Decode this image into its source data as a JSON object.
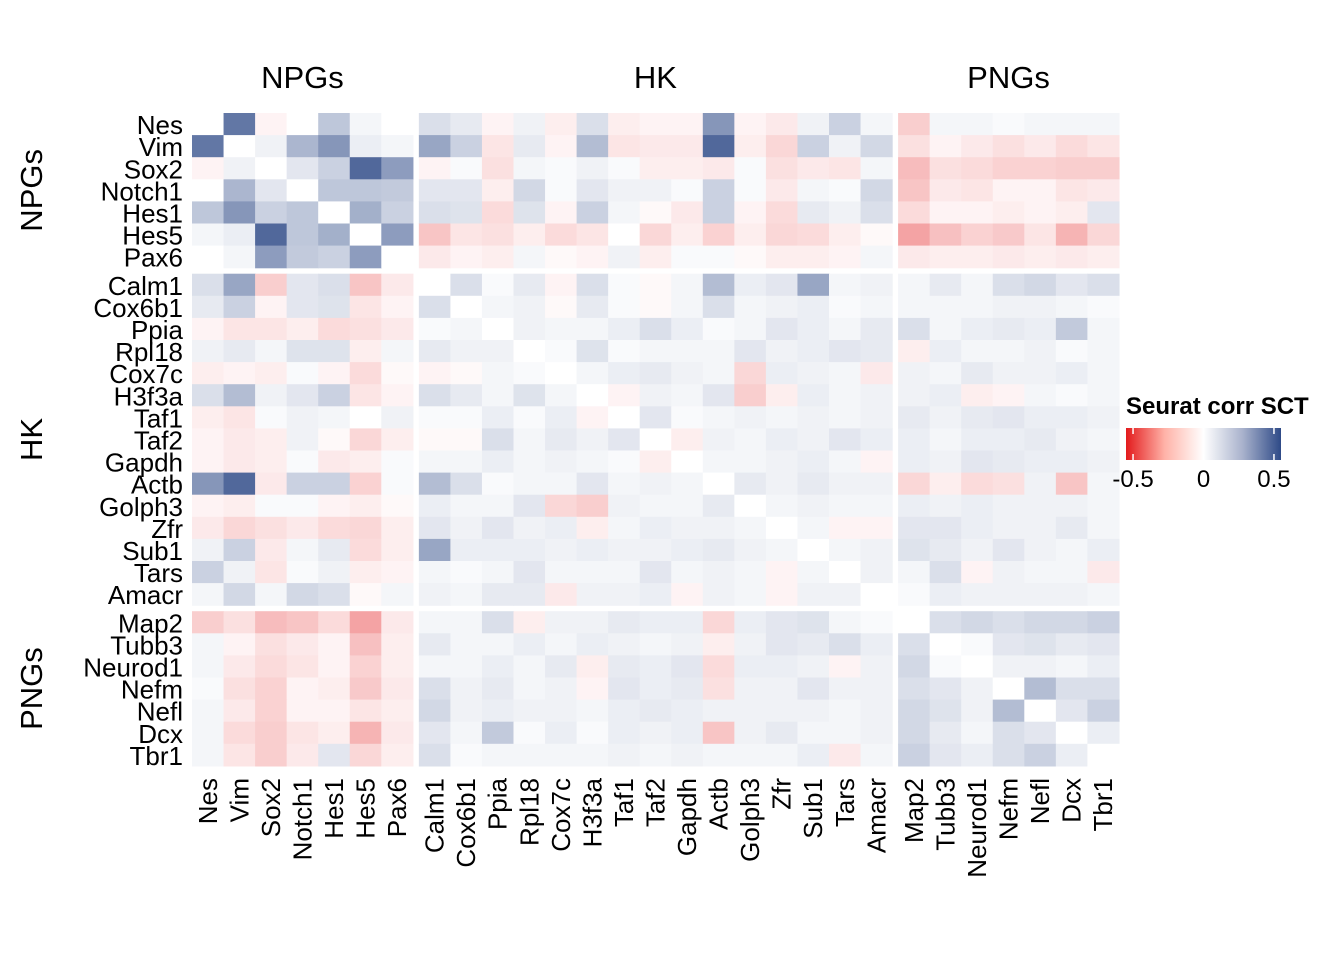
{
  "chart_data": {
    "type": "heatmap",
    "genes": [
      "Nes",
      "Vim",
      "Sox2",
      "Notch1",
      "Hes1",
      "Hes5",
      "Pax6",
      "Calm1",
      "Cox6b1",
      "Ppia",
      "Rpl18",
      "Cox7c",
      "H3f3a",
      "Taf1",
      "Taf2",
      "Gapdh",
      "Actb",
      "Golph3",
      "Zfr",
      "Sub1",
      "Tars",
      "Amacr",
      "Map2",
      "Tubb3",
      "Neurod1",
      "Nefm",
      "Nefl",
      "Dcx",
      "Tbr1"
    ],
    "groups": [
      {
        "name": "NPGs",
        "size": 7
      },
      {
        "name": "HK",
        "size": 15
      },
      {
        "name": "PNGs",
        "size": 7
      }
    ],
    "legend": {
      "title": "Seurat corr SCT",
      "ticks": [
        -0.5,
        0,
        0.5
      ],
      "tick_labels": [
        "-0.5",
        "0",
        "0.5"
      ],
      "range": [
        -0.55,
        0.55
      ],
      "low_color": "#e31a1c",
      "mid_color": "#ffffff",
      "high_color": "#2e4a87"
    },
    "values": [
      [
        0,
        0.4,
        -0.02,
        0,
        0.15,
        0.02,
        0,
        0.08,
        0.05,
        -0.02,
        0.03,
        -0.03,
        0.08,
        -0.03,
        -0.02,
        -0.02,
        0.3,
        -0.02,
        -0.04,
        0.03,
        0.12,
        0.02,
        -0.1,
        0.02,
        0.02,
        0.01,
        0.02,
        0.02,
        0.02
      ],
      [
        0.4,
        0,
        0.03,
        0.2,
        0.3,
        0.04,
        0.02,
        0.25,
        0.12,
        -0.05,
        0.05,
        -0.02,
        0.18,
        -0.05,
        -0.04,
        -0.04,
        0.45,
        -0.03,
        -0.08,
        0.12,
        0.03,
        0.1,
        -0.06,
        -0.02,
        -0.04,
        -0.06,
        -0.04,
        -0.07,
        -0.05
      ],
      [
        -0.02,
        0.03,
        0,
        0.06,
        0.12,
        0.45,
        0.28,
        -0.02,
        0.01,
        -0.06,
        0.02,
        0.01,
        0.03,
        0.01,
        -0.03,
        -0.03,
        -0.04,
        0.01,
        -0.06,
        -0.04,
        -0.05,
        0.02,
        -0.14,
        -0.06,
        -0.07,
        -0.09,
        -0.09,
        -0.1,
        -0.1
      ],
      [
        0,
        0.2,
        0.06,
        0,
        0.15,
        0.15,
        0.14,
        0.06,
        0.06,
        -0.03,
        0.1,
        0.01,
        0.06,
        0.03,
        0.03,
        0.01,
        0.12,
        0.01,
        -0.04,
        0.02,
        0.01,
        0.1,
        -0.12,
        -0.04,
        -0.05,
        -0.02,
        -0.02,
        -0.05,
        -0.04
      ],
      [
        0.15,
        0.3,
        0.12,
        0.15,
        0,
        0.22,
        0.12,
        0.08,
        0.07,
        -0.07,
        0.07,
        -0.02,
        0.12,
        0.02,
        -0.01,
        -0.04,
        0.12,
        -0.02,
        -0.07,
        0.05,
        0.03,
        0.08,
        -0.07,
        -0.02,
        -0.02,
        -0.03,
        -0.02,
        -0.03,
        0.06
      ],
      [
        0.02,
        0.04,
        0.45,
        0.15,
        0.22,
        0,
        0.28,
        -0.12,
        -0.05,
        -0.06,
        -0.03,
        -0.07,
        -0.05,
        0,
        -0.08,
        -0.03,
        -0.09,
        -0.03,
        -0.08,
        -0.07,
        -0.03,
        -0.01,
        -0.2,
        -0.13,
        -0.09,
        -0.11,
        -0.05,
        -0.16,
        -0.08
      ],
      [
        0,
        0.02,
        0.28,
        0.14,
        0.12,
        0.28,
        0,
        -0.04,
        -0.02,
        -0.03,
        0.02,
        -0.01,
        -0.02,
        0.03,
        -0.03,
        0.01,
        0.01,
        -0.01,
        -0.03,
        -0.03,
        -0.02,
        0.02,
        -0.04,
        -0.03,
        -0.03,
        -0.04,
        -0.03,
        -0.04,
        -0.03
      ],
      [
        0.08,
        0.25,
        -0.1,
        0.06,
        0.08,
        -0.12,
        -0.04,
        0,
        0.08,
        0.01,
        0.05,
        -0.02,
        0.08,
        0.01,
        -0.01,
        0.02,
        0.18,
        0.04,
        0.06,
        0.25,
        0.02,
        0.03,
        0.02,
        0.05,
        0.02,
        0.08,
        0.1,
        0.06,
        0.08
      ],
      [
        0.05,
        0.12,
        -0.02,
        0.06,
        0.07,
        -0.05,
        -0.02,
        0.08,
        0,
        0.02,
        0.03,
        -0.01,
        0.05,
        0.01,
        -0.01,
        0.02,
        0.08,
        0.02,
        0.03,
        0.04,
        0.01,
        0.02,
        0.02,
        0.02,
        0.02,
        0.03,
        0.03,
        0.02,
        0.01
      ],
      [
        -0.02,
        -0.05,
        -0.05,
        -0.03,
        -0.07,
        -0.06,
        -0.04,
        0.01,
        0.02,
        0,
        0.03,
        0.02,
        0.02,
        0.04,
        0.08,
        0.04,
        0.01,
        0.02,
        0.06,
        0.04,
        0.02,
        0.05,
        0.08,
        0.02,
        0.04,
        0.05,
        0.04,
        0.14,
        0.02
      ],
      [
        0.03,
        0.05,
        0.02,
        0.07,
        0.07,
        -0.03,
        0.02,
        0.05,
        0.03,
        0.03,
        0,
        0.01,
        0.07,
        0.01,
        0.02,
        0.02,
        0.02,
        0.06,
        0.03,
        0.04,
        0.06,
        0.05,
        -0.03,
        0.04,
        0.02,
        0.02,
        0.03,
        0.01,
        0.02
      ],
      [
        -0.03,
        -0.02,
        -0.03,
        0.01,
        -0.02,
        -0.07,
        -0.01,
        -0.02,
        -0.01,
        0.02,
        0.01,
        0,
        0.02,
        0.04,
        0.05,
        0.03,
        0.02,
        -0.08,
        0.04,
        0.03,
        0.02,
        -0.04,
        0.03,
        0.02,
        0.05,
        0.03,
        0.03,
        0.04,
        0.02
      ],
      [
        0.08,
        0.18,
        0.03,
        0.06,
        0.12,
        -0.05,
        -0.02,
        0.08,
        0.05,
        0.02,
        0.07,
        0.02,
        0,
        -0.02,
        0.03,
        0.02,
        0.06,
        -0.1,
        -0.03,
        0.04,
        0.02,
        0.03,
        0.03,
        0.04,
        -0.03,
        -0.02,
        0.02,
        0.01,
        0.02
      ],
      [
        -0.03,
        -0.05,
        0.01,
        0.03,
        0.02,
        0,
        0.03,
        0.01,
        0.01,
        0.04,
        0.01,
        0.04,
        -0.02,
        0,
        0.06,
        0.01,
        0.02,
        0.03,
        0.02,
        0.03,
        0.02,
        0.03,
        0.05,
        0.03,
        0.05,
        0.06,
        0.04,
        0.04,
        0.03
      ],
      [
        -0.02,
        -0.04,
        -0.03,
        0.03,
        -0.01,
        -0.08,
        -0.03,
        -0.01,
        -0.01,
        0.08,
        0.02,
        0.05,
        0.03,
        0.06,
        0,
        -0.03,
        0.03,
        0.02,
        0.04,
        0.03,
        0.06,
        0.04,
        0.04,
        0.02,
        0.04,
        0.04,
        0.05,
        0.03,
        0.02
      ],
      [
        -0.02,
        -0.04,
        -0.03,
        0.01,
        -0.04,
        -0.03,
        0.01,
        0.02,
        0.02,
        0.04,
        0.02,
        0.03,
        0.02,
        0.01,
        -0.03,
        0,
        0.02,
        0.02,
        0.03,
        0.04,
        0.02,
        -0.02,
        0.04,
        0.03,
        0.06,
        0.05,
        0.04,
        0.04,
        0.03
      ],
      [
        0.3,
        0.45,
        -0.04,
        0.12,
        0.12,
        -0.09,
        0.01,
        0.18,
        0.08,
        0.01,
        0.02,
        0.02,
        0.06,
        0.02,
        0.03,
        0.02,
        0,
        0.05,
        0.03,
        0.05,
        0.03,
        0.03,
        -0.08,
        -0.03,
        -0.07,
        -0.06,
        0.03,
        -0.12,
        0.02
      ],
      [
        -0.02,
        -0.03,
        0.01,
        0.01,
        -0.02,
        -0.03,
        -0.01,
        0.04,
        0.02,
        0.02,
        0.06,
        -0.08,
        -0.1,
        0.03,
        0.02,
        0.02,
        0.05,
        0,
        0.02,
        0.03,
        0.02,
        0.02,
        0.04,
        0.03,
        0.04,
        0.03,
        0.03,
        0.03,
        0.02
      ],
      [
        -0.04,
        -0.08,
        -0.06,
        -0.04,
        -0.07,
        -0.08,
        -0.03,
        0.06,
        0.03,
        0.06,
        0.03,
        0.04,
        -0.03,
        0.02,
        0.04,
        0.03,
        0.03,
        0.02,
        0,
        0.02,
        -0.02,
        -0.02,
        0.06,
        0.06,
        0.04,
        0.03,
        0.03,
        0.05,
        0.02
      ],
      [
        0.03,
        0.12,
        -0.04,
        0.02,
        0.05,
        -0.07,
        -0.03,
        0.25,
        0.04,
        0.04,
        0.04,
        0.03,
        0.04,
        0.03,
        0.03,
        0.04,
        0.05,
        0.03,
        0.02,
        0,
        0.02,
        0.03,
        0.07,
        0.05,
        0.03,
        0.06,
        0.03,
        0.02,
        0.04
      ],
      [
        0.12,
        0.03,
        -0.05,
        0.01,
        0.03,
        -0.03,
        -0.02,
        0.02,
        0.01,
        0.02,
        0.06,
        0.02,
        0.02,
        0.02,
        0.06,
        0.02,
        0.03,
        0.02,
        -0.02,
        0.02,
        0,
        0.03,
        0.02,
        0.08,
        -0.02,
        0.03,
        0.02,
        0.02,
        -0.04
      ],
      [
        0.02,
        0.1,
        0.02,
        0.1,
        0.08,
        -0.01,
        0.02,
        0.03,
        0.02,
        0.05,
        0.05,
        -0.04,
        0.03,
        0.03,
        0.04,
        -0.02,
        0.03,
        0.02,
        -0.02,
        0.03,
        0.03,
        0,
        0.01,
        0.04,
        0.03,
        0.03,
        0.03,
        0.03,
        0.02
      ],
      [
        -0.1,
        -0.06,
        -0.14,
        -0.12,
        -0.07,
        -0.2,
        -0.04,
        0.02,
        0.02,
        0.08,
        -0.03,
        0.03,
        0.03,
        0.05,
        0.04,
        0.04,
        -0.08,
        0.04,
        0.06,
        0.07,
        0.02,
        0.01,
        0,
        0.08,
        0.1,
        0.08,
        0.1,
        0.1,
        0.12
      ],
      [
        0.02,
        -0.02,
        -0.06,
        -0.04,
        -0.02,
        -0.13,
        -0.03,
        0.05,
        0.02,
        0.02,
        0.04,
        0.02,
        0.04,
        0.03,
        0.02,
        0.03,
        -0.03,
        0.03,
        0.06,
        0.05,
        0.08,
        0.04,
        0.08,
        0,
        0.01,
        0.06,
        0.07,
        0.05,
        0.06
      ],
      [
        0.02,
        -0.04,
        -0.07,
        -0.05,
        -0.02,
        -0.09,
        -0.03,
        0.02,
        0.02,
        0.04,
        0.02,
        0.05,
        -0.03,
        0.05,
        0.04,
        0.06,
        -0.07,
        0.04,
        0.04,
        0.03,
        -0.02,
        0.03,
        0.1,
        0.01,
        0,
        0.03,
        0.03,
        0.02,
        0.04
      ],
      [
        0.01,
        -0.06,
        -0.09,
        -0.02,
        -0.03,
        -0.11,
        -0.04,
        0.08,
        0.03,
        0.05,
        0.02,
        0.03,
        -0.02,
        0.06,
        0.04,
        0.05,
        -0.06,
        0.03,
        0.03,
        0.06,
        0.03,
        0.03,
        0.08,
        0.06,
        0.03,
        0,
        0.18,
        0.08,
        0.08
      ],
      [
        0.02,
        -0.04,
        -0.09,
        -0.02,
        -0.02,
        -0.05,
        -0.03,
        0.1,
        0.03,
        0.04,
        0.03,
        0.03,
        0.02,
        0.04,
        0.05,
        0.04,
        0.03,
        0.03,
        0.03,
        0.03,
        0.02,
        0.03,
        0.1,
        0.07,
        0.03,
        0.18,
        0,
        0.06,
        0.12
      ],
      [
        0.02,
        -0.07,
        -0.1,
        -0.05,
        -0.03,
        -0.16,
        -0.04,
        0.06,
        0.02,
        0.14,
        0.01,
        0.04,
        0.01,
        0.04,
        0.03,
        0.04,
        -0.12,
        0.03,
        0.05,
        0.02,
        0.02,
        0.03,
        0.1,
        0.05,
        0.02,
        0.08,
        0.06,
        0,
        0.04
      ],
      [
        0.02,
        -0.05,
        -0.1,
        -0.04,
        0.06,
        -0.08,
        -0.03,
        0.08,
        0.01,
        0.02,
        0.02,
        0.02,
        0.02,
        0.03,
        0.02,
        0.03,
        0.02,
        0.02,
        0.02,
        0.04,
        -0.04,
        0.02,
        0.12,
        0.06,
        0.04,
        0.08,
        0.12,
        0.04,
        0
      ]
    ]
  }
}
